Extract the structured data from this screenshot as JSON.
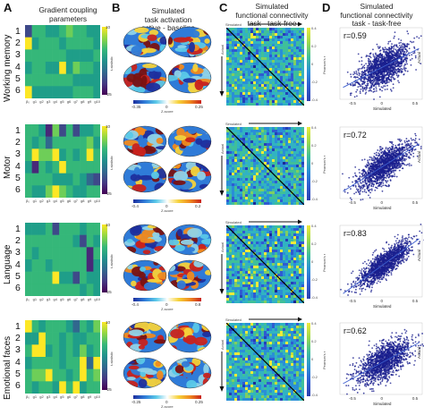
{
  "panels": {
    "A": {
      "letter": "A",
      "title_line1": "Gradient coupling",
      "title_line2": "parameters"
    },
    "B": {
      "letter": "B",
      "title_line1": "Simulated",
      "title_line2": "task activation",
      "title_line3": "active - baseline"
    },
    "C": {
      "letter": "C",
      "title_line1": "Simulated",
      "title_line2": "functional connectivity",
      "title_line3": "task - task-free"
    },
    "D": {
      "letter": "D",
      "title_line1": "Simulated",
      "title_line2": "functional connectivity",
      "title_line3": "task - task-free"
    }
  },
  "rows": [
    {
      "label": "Working memory",
      "cb_a_max": "10",
      "cb_a_min": "-25",
      "cb_a_label": "t-statistic",
      "cb_b_min": "-0.35",
      "cb_b_mid": "0",
      "cb_b_max": "0.25",
      "cb_b_label": "Z-score",
      "cb_c_ticks": [
        "0.4",
        "0.2",
        "0",
        "-0.2",
        "-0.4"
      ],
      "cb_c_label": "Pearson's r",
      "sim_label": "Simulated",
      "actual_label": "Actual",
      "r_text": "r=0.59",
      "scatter_xticks": [
        "-0.5",
        "0",
        "0.5"
      ],
      "scatter_xlabel": "Simulated",
      "scatter_ylabel": "Actual"
    },
    {
      "label": "Motor",
      "cb_a_max": "10",
      "cb_a_min": "-25",
      "cb_a_label": "t-statistic",
      "cb_b_min": "-0.4",
      "cb_b_mid": "0",
      "cb_b_max": "0.2",
      "cb_b_label": "Z-score",
      "cb_c_ticks": [
        "0.4",
        "0.2",
        "0",
        "-0.2",
        "-0.4"
      ],
      "cb_c_label": "Pearson's r",
      "sim_label": "Simulated",
      "actual_label": "Actual",
      "r_text": "r=0.72",
      "scatter_xticks": [
        "-0.5",
        "0",
        "0.5"
      ],
      "scatter_xlabel": "Simulated",
      "scatter_ylabel": "Actual"
    },
    {
      "label": "Language",
      "cb_a_max": "10",
      "cb_a_min": "-25",
      "cb_a_label": "t-statistic",
      "cb_b_min": "-0.4",
      "cb_b_mid": "0",
      "cb_b_max": "0.8",
      "cb_b_label": "Z-score",
      "cb_c_ticks": [
        "0.4",
        "0.2",
        "0",
        "-0.2",
        "-0.4"
      ],
      "cb_c_label": "Pearson's r",
      "sim_label": "Simulated",
      "actual_label": "Actual",
      "r_text": "r=0.83",
      "scatter_xticks": [
        "-0.5",
        "0",
        "0.5"
      ],
      "scatter_xlabel": "Simulated",
      "scatter_ylabel": "Actual"
    },
    {
      "label": "Emotional faces",
      "cb_a_max": "10",
      "cb_a_min": "-25",
      "cb_a_label": "t-statistic",
      "cb_b_min": "-0.25",
      "cb_b_mid": "0",
      "cb_b_max": "0.25",
      "cb_b_label": "Z-score",
      "cb_c_ticks": [
        "0.4",
        "0.2",
        "0",
        "-0.2",
        "-0.4"
      ],
      "cb_c_label": "Pearson's r",
      "sim_label": "Simulated",
      "actual_label": "Actual",
      "r_text": "r=0.62",
      "scatter_xticks": [
        "-0.5",
        "0",
        "0.5"
      ],
      "scatter_xlabel": "Simulated",
      "scatter_ylabel": "Actual"
    }
  ],
  "heatmap": {
    "yticks": [
      "1",
      "2",
      "3",
      "4",
      "5",
      "6"
    ],
    "xticks": [
      "β₀",
      "g1",
      "g2",
      "g3",
      "g4",
      "g5",
      "g6",
      "g7",
      "g8",
      "g9",
      "g10"
    ]
  },
  "colors": {
    "viridis_low": "#440154",
    "viridis_high": "#fde725",
    "jet_low": "#2b3fae",
    "jet_high": "#f0ea3a",
    "scatter_dot": "#1a1f8e",
    "fit_line": "#3d5fcf"
  }
}
